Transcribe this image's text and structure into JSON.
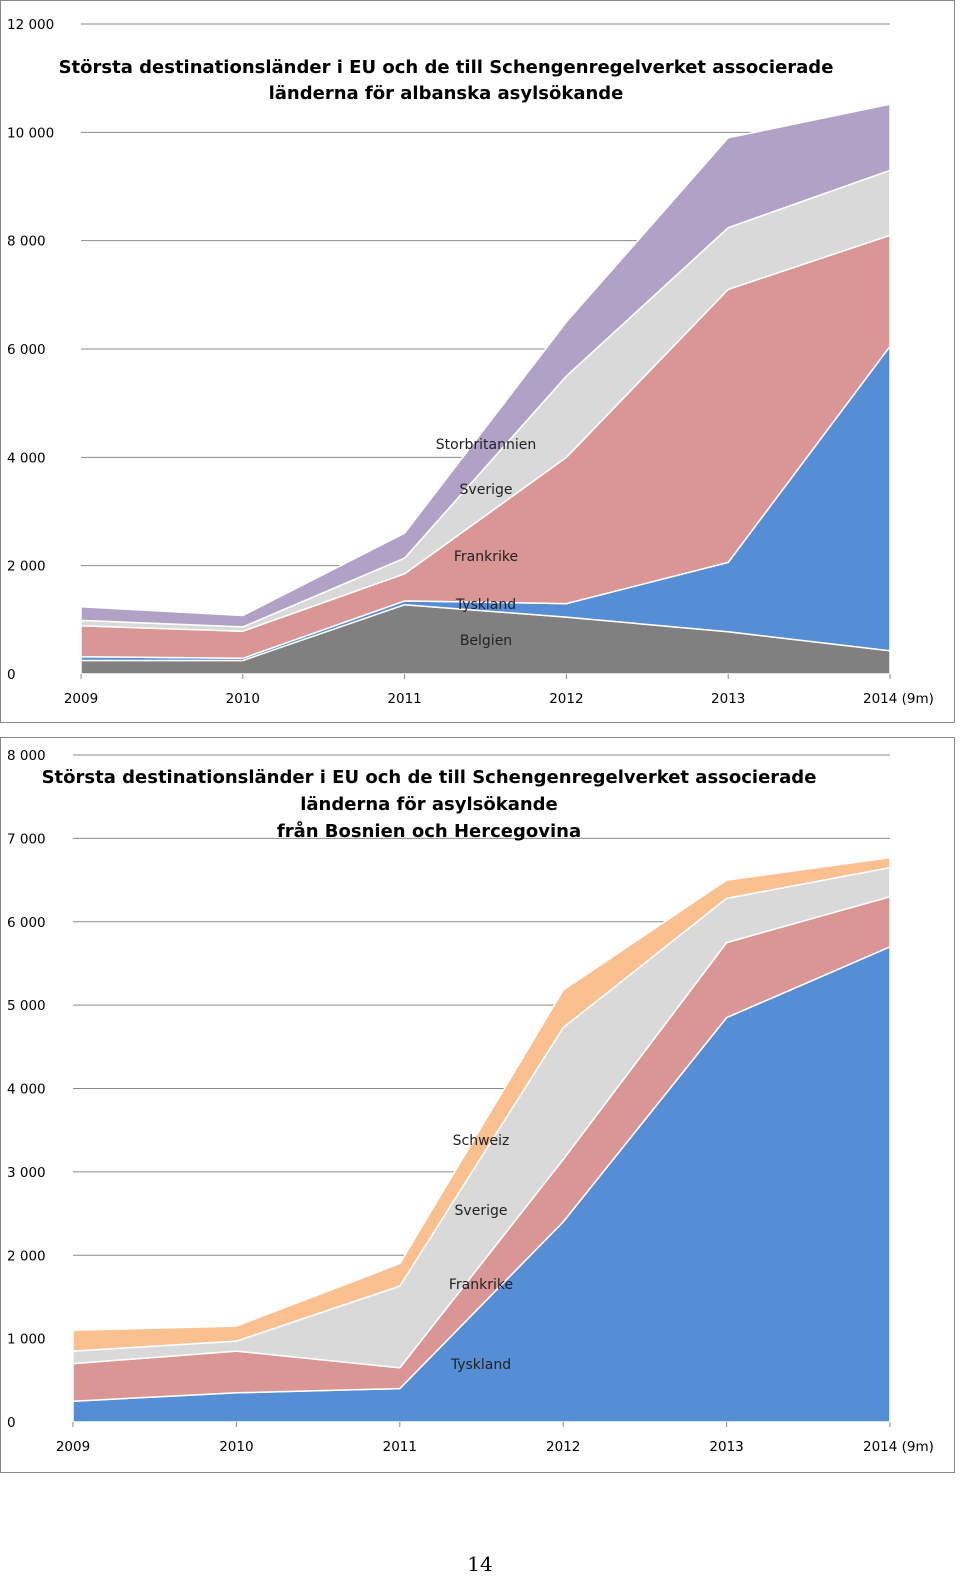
{
  "page_number": "14",
  "chart_data": [
    {
      "type": "area",
      "stacked": true,
      "title_lines": [
        "Största destinationsländer i EU och de till Schengenregelverket associerade",
        "länderna för albanska asylsökande"
      ],
      "categories": [
        "2009",
        "2010",
        "2011",
        "2012",
        "2013",
        "2014 (9m)"
      ],
      "ylim": [
        0,
        12000
      ],
      "yticks": [
        0,
        2000,
        4000,
        6000,
        8000,
        10000,
        12000
      ],
      "ytick_labels": [
        "0",
        "2 000",
        "4 000",
        "6 000",
        "8 000",
        "10 000",
        "12 000"
      ],
      "grid": true,
      "series": [
        {
          "name": "Belgien",
          "color": "#808080",
          "values": [
            250,
            250,
            1280,
            1050,
            780,
            430
          ]
        },
        {
          "name": "Tyskland",
          "color": "#558ED5",
          "values": [
            70,
            40,
            70,
            250,
            1280,
            5620
          ]
        },
        {
          "name": "Frankrike",
          "color": "#D99694",
          "values": [
            570,
            500,
            500,
            2700,
            5040,
            2050
          ]
        },
        {
          "name": "Sverige",
          "color": "#D9D9D9",
          "values": [
            100,
            80,
            290,
            1500,
            1140,
            1200
          ]
        },
        {
          "name": "Storbritannien",
          "color": "#B2A1C7",
          "values": [
            250,
            210,
            460,
            1000,
            1660,
            1220
          ]
        }
      ]
    },
    {
      "type": "area",
      "stacked": true,
      "title_lines": [
        "Största destinationsländer i EU och de till Schengenregelverket associerade",
        "länderna för asylsökande",
        "från Bosnien och Hercegovina"
      ],
      "categories": [
        "2009",
        "2010",
        "2011",
        "2012",
        "2013",
        "2014 (9m)"
      ],
      "ylim": [
        0,
        8000
      ],
      "yticks": [
        0,
        1000,
        2000,
        3000,
        4000,
        5000,
        6000,
        7000,
        8000
      ],
      "ytick_labels": [
        "0",
        "1 000",
        "2 000",
        "3 000",
        "4 000",
        "5 000",
        "6 000",
        "7 000",
        "8 000"
      ],
      "grid": true,
      "series": [
        {
          "name": "Tyskland",
          "color": "#558ED5",
          "values": [
            250,
            350,
            400,
            2400,
            4850,
            5700
          ]
        },
        {
          "name": "Frankrike",
          "color": "#D99694",
          "values": [
            450,
            500,
            250,
            750,
            900,
            600
          ]
        },
        {
          "name": "Sverige",
          "color": "#D9D9D9",
          "values": [
            150,
            120,
            980,
            1580,
            530,
            350
          ]
        },
        {
          "name": "Schweiz",
          "color": "#FAC090",
          "values": [
            250,
            180,
            270,
            450,
            220,
            120
          ]
        }
      ]
    }
  ]
}
